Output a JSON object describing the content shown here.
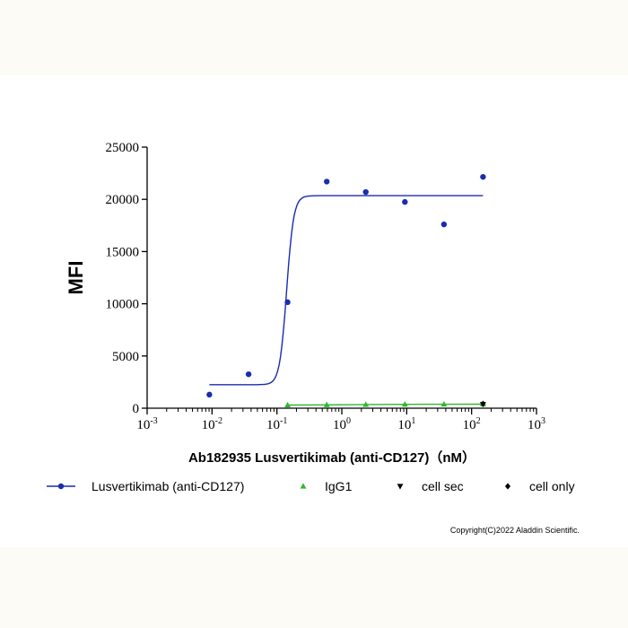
{
  "chart_data": {
    "type": "scatter",
    "xlabel": "Ab182935 Lusvertikimab (anti-CD127)（nM）",
    "ylabel": "MFI",
    "xscale": "log",
    "xlim": [
      0.001,
      1000
    ],
    "ylim": [
      0,
      25000
    ],
    "x_ticks": [
      {
        "base": "10",
        "exp": "-3"
      },
      {
        "base": "10",
        "exp": "-2"
      },
      {
        "base": "10",
        "exp": "-1"
      },
      {
        "base": "10",
        "exp": "0"
      },
      {
        "base": "10",
        "exp": "1"
      },
      {
        "base": "10",
        "exp": "2"
      },
      {
        "base": "10",
        "exp": "3"
      }
    ],
    "y_ticks": [
      "0",
      "5000",
      "10000",
      "15000",
      "20000",
      "25000"
    ],
    "grid": false,
    "legend_position": "bottom",
    "series": [
      {
        "name": "Lusvertikimab (anti-CD127)",
        "color": "#1a2cb0",
        "marker": "circle",
        "x": [
          0.0091,
          0.0366,
          0.146,
          0.586,
          2.34,
          9.38,
          37.5,
          150
        ],
        "y": [
          1300,
          3250,
          10150,
          21700,
          20700,
          19750,
          17600,
          22150
        ],
        "fit": {
          "bottom": 2250,
          "top": 20350,
          "logEC50": -0.85,
          "hill": 8
        }
      },
      {
        "name": "IgG1",
        "color": "#2eb82e",
        "marker": "triangle-up",
        "x": [
          0.146,
          0.586,
          2.34,
          9.38,
          37.5,
          150
        ],
        "y": [
          300,
          320,
          350,
          370,
          380,
          390
        ],
        "fit": {
          "line": true
        }
      },
      {
        "name": "cell sec",
        "color": "#000000",
        "marker": "triangle-down",
        "x": [
          150
        ],
        "y": [
          380
        ]
      },
      {
        "name": "cell only",
        "color": "#000000",
        "marker": "diamond",
        "x": [
          150
        ],
        "y": [
          420
        ]
      }
    ]
  },
  "copyright": "Copyright(C)2022 Aladdin Scientific."
}
